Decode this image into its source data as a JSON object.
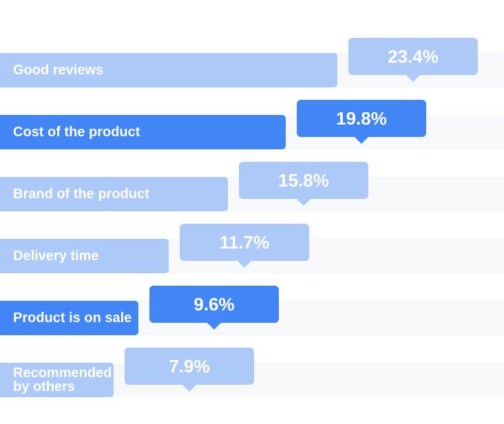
{
  "chart_data": {
    "type": "bar",
    "orientation": "horizontal",
    "title": "",
    "xlabel": "",
    "ylabel": "",
    "xlim": [
      0,
      30
    ],
    "grid": false,
    "categories": [
      "Good reviews",
      "Cost of the product",
      "Brand of the product",
      "Delivery time",
      "Product is on sale",
      "Recommended\nby others"
    ],
    "values": [
      23.4,
      19.8,
      15.8,
      11.7,
      9.6,
      7.9
    ],
    "value_labels": [
      "23.4%",
      "19.8%",
      "15.8%",
      "11.7%",
      "9.6%",
      "7.9%"
    ],
    "highlighted": [
      false,
      true,
      false,
      false,
      true,
      false
    ]
  },
  "colors": {
    "bar_default": "#adc9f8",
    "bar_highlight": "#4285f4",
    "track": "#f7f8fa",
    "text": "#ffffff"
  }
}
